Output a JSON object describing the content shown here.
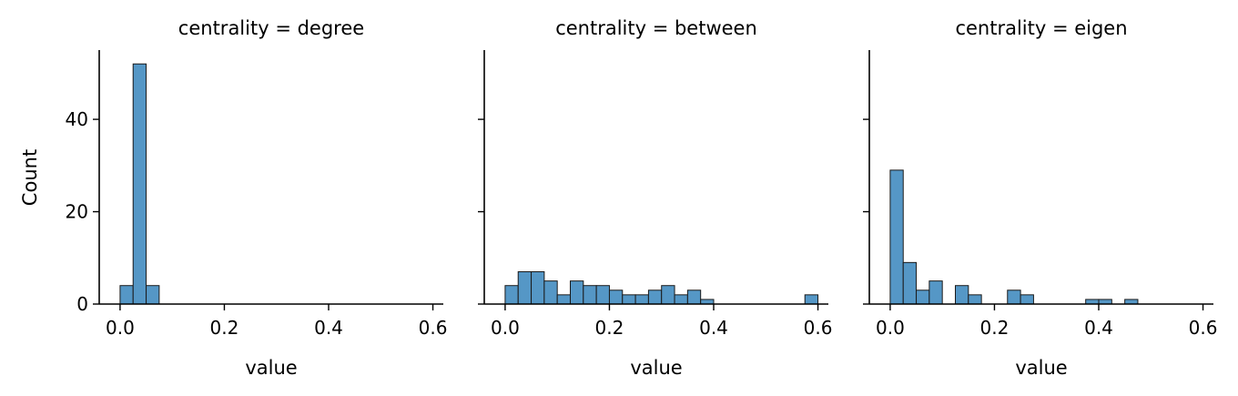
{
  "chart_data": {
    "type": "bar",
    "ylabel": "Count",
    "xlabel": "value",
    "ylim": [
      0,
      55
    ],
    "yticks": [
      0,
      20,
      40
    ],
    "xlim": [
      -0.04,
      0.62
    ],
    "xticks": [
      0.0,
      0.2,
      0.4,
      0.6
    ],
    "xtick_labels": [
      "0.0",
      "0.2",
      "0.4",
      "0.6"
    ],
    "bar_color": "#5597c6",
    "bin_width": 0.03,
    "panels": [
      {
        "title": "centrality = degree",
        "show_y_tick_labels": true,
        "bins": [
          {
            "x0": 0.0,
            "count": 4
          },
          {
            "x0": 0.025,
            "count": 52
          },
          {
            "x0": 0.05,
            "count": 4
          }
        ]
      },
      {
        "title": "centrality = between",
        "show_y_tick_labels": false,
        "bins": [
          {
            "x0": 0.0,
            "count": 4
          },
          {
            "x0": 0.025,
            "count": 7
          },
          {
            "x0": 0.05,
            "count": 7
          },
          {
            "x0": 0.075,
            "count": 5
          },
          {
            "x0": 0.1,
            "count": 2
          },
          {
            "x0": 0.125,
            "count": 5
          },
          {
            "x0": 0.15,
            "count": 4
          },
          {
            "x0": 0.175,
            "count": 4
          },
          {
            "x0": 0.2,
            "count": 3
          },
          {
            "x0": 0.225,
            "count": 2
          },
          {
            "x0": 0.25,
            "count": 2
          },
          {
            "x0": 0.275,
            "count": 3
          },
          {
            "x0": 0.3,
            "count": 4
          },
          {
            "x0": 0.325,
            "count": 2
          },
          {
            "x0": 0.35,
            "count": 3
          },
          {
            "x0": 0.375,
            "count": 1
          },
          {
            "x0": 0.575,
            "count": 2
          }
        ]
      },
      {
        "title": "centrality = eigen",
        "show_y_tick_labels": false,
        "bins": [
          {
            "x0": 0.0,
            "count": 29
          },
          {
            "x0": 0.025,
            "count": 9
          },
          {
            "x0": 0.05,
            "count": 3
          },
          {
            "x0": 0.075,
            "count": 5
          },
          {
            "x0": 0.125,
            "count": 4
          },
          {
            "x0": 0.15,
            "count": 2
          },
          {
            "x0": 0.225,
            "count": 3
          },
          {
            "x0": 0.25,
            "count": 2
          },
          {
            "x0": 0.375,
            "count": 1
          },
          {
            "x0": 0.4,
            "count": 1
          },
          {
            "x0": 0.45,
            "count": 1
          }
        ]
      }
    ]
  }
}
